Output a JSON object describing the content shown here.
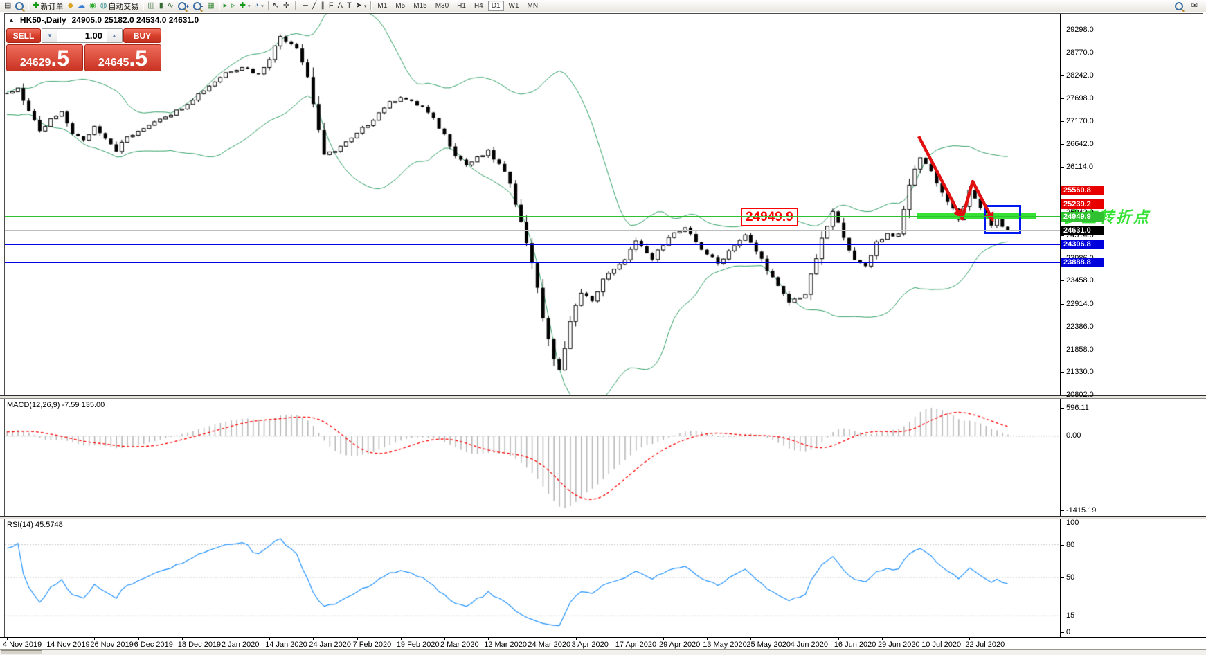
{
  "toolbar": {
    "groups": [
      [
        {
          "name": "charts-window",
          "glyph": "▤"
        },
        {
          "name": "data-preview",
          "glyph": "MAG"
        }
      ],
      [
        {
          "name": "new-order",
          "glyph": "✚",
          "tint": "#1a9a1a",
          "label": "新订单"
        },
        {
          "name": "gold-symbol",
          "glyph": "◆",
          "tint": "#d9a520"
        },
        {
          "name": "community",
          "glyph": "☁",
          "tint": "#3a7bd5"
        },
        {
          "name": "signals",
          "glyph": "◉",
          "tint": "#2faa2f"
        },
        {
          "name": "auto-trading",
          "glyph": "◍",
          "tint": "#2a8a8a",
          "label": "自动交易"
        }
      ],
      [
        {
          "name": "bar-chart-mode",
          "glyph": "▥",
          "tint": "#356b35"
        },
        {
          "name": "candlestick-mode",
          "glyph": "▮",
          "tint": "#356b35"
        },
        {
          "name": "line-chart-mode",
          "glyph": "∿",
          "tint": "#356b35"
        },
        {
          "name": "zoom-in",
          "glyph": "MAG+"
        },
        {
          "name": "zoom-out",
          "glyph": "MAG-"
        },
        {
          "name": "tile-windows",
          "glyph": "▦",
          "tint": "#3a8a3a"
        }
      ],
      [
        {
          "name": "shift-chart-end",
          "glyph": "▸",
          "tint": "#2f8f2f"
        },
        {
          "name": "auto-scroll",
          "glyph": "▹",
          "tint": "#2f8f2f"
        },
        {
          "name": "add-indicator",
          "glyph": "✚",
          "tint": "#1a9a1a",
          "dropdown": true
        },
        {
          "name": "period-presets",
          "glyph": "◔",
          "tint": "#3a6ea5",
          "dropdown": true
        }
      ],
      [
        {
          "name": "cursor-tool",
          "glyph": "↖"
        },
        {
          "name": "crosshair-tool",
          "glyph": "✛"
        },
        {
          "name": "vertical-line-tool",
          "glyph": "│"
        },
        {
          "name": "horizontal-line-tool",
          "glyph": "─"
        },
        {
          "name": "trendline-tool",
          "glyph": "╱"
        },
        {
          "name": "equidistant-channel-tool",
          "glyph": "∥"
        },
        {
          "name": "fibonacci-tool",
          "glyph": "F"
        },
        {
          "name": "text-tool",
          "glyph": "A"
        },
        {
          "name": "text-label-tool",
          "glyph": "T"
        },
        {
          "name": "arrows-tool",
          "glyph": "➤",
          "dropdown": true
        }
      ]
    ],
    "timeframes": [
      {
        "label": "M1"
      },
      {
        "label": "M5"
      },
      {
        "label": "M15"
      },
      {
        "label": "M30"
      },
      {
        "label": "H1"
      },
      {
        "label": "H4"
      },
      {
        "label": "D1",
        "active": true
      },
      {
        "label": "W1"
      },
      {
        "label": "MN"
      }
    ],
    "right_icons": [
      {
        "name": "search",
        "glyph": "MAG"
      },
      {
        "name": "chat",
        "glyph": "✉"
      }
    ]
  },
  "chart": {
    "header": {
      "collapse_glyph": "▲",
      "title": "HK50-,Daily",
      "ohlc": "24905.0 25182.0 24534.0 24631.0"
    },
    "one_click": {
      "sell_label": "SELL",
      "buy_label": "BUY",
      "volume": "1.00",
      "spin_down": "▼",
      "spin_up": "▲",
      "sell_price_main": "24629",
      "sell_price_frac": ".5",
      "buy_price_main": "24645",
      "buy_price_frac": ".5"
    },
    "y_axis_ticks": [
      "29298.0",
      "28770.0",
      "28242.0",
      "27698.0",
      "27170.0",
      "26642.0",
      "26114.0",
      "25042.0",
      "24514.0",
      "23986.0",
      "23458.0",
      "22914.0",
      "22386.0",
      "21858.0",
      "21330.0",
      "20802.0"
    ],
    "price_tags": [
      {
        "text": "25560.8",
        "bg": "#e80000"
      },
      {
        "text": "25239.2",
        "bg": "#e80000"
      },
      {
        "text": "24949.9",
        "bg": "#2fc12f"
      },
      {
        "text": "24631.0",
        "bg": "#000000"
      },
      {
        "text": "24306.8",
        "bg": "#0000dd"
      },
      {
        "text": "23888.8",
        "bg": "#0000dd"
      }
    ],
    "hlines": [
      {
        "price": 25560.8,
        "color": "#ff0000",
        "width": 1
      },
      {
        "price": 25239.2,
        "color": "#ff0000",
        "width": 1
      },
      {
        "price": 24949.9,
        "color": "#2fc12f",
        "width": 1
      },
      {
        "price": 24631.0,
        "color": "#bdbdbd",
        "width": 1
      },
      {
        "price": 24306.8,
        "color": "#0000e6",
        "width": 2
      },
      {
        "price": 23888.8,
        "color": "#0000e6",
        "width": 2
      }
    ],
    "annotations": {
      "price_callout": "24949.9",
      "cjk_note": "多空转折点",
      "accent_green": "#35e235",
      "arrow_red": "#e01010",
      "box_blue": "#0018f0"
    },
    "x_axis_dates": [
      "4 Nov 2019",
      "14 Nov 2019",
      "26 Nov 2019",
      "6 Dec 2019",
      "18 Dec 2019",
      "2 Jan 2020",
      "14 Jan 2020",
      "24 Jan 2020",
      "7 Feb 2020",
      "19 Feb 2020",
      "2 Mar 2020",
      "12 Mar 2020",
      "24 Mar 2020",
      "3 Apr 2020",
      "17 Apr 2020",
      "29 Apr 2020",
      "13 May 2020",
      "25 May 2020",
      "4 Jun 2020",
      "16 Jun 2020",
      "29 Jun 2020",
      "10 Jul 2020",
      "22 Jul 2020"
    ]
  },
  "macd": {
    "label": "MACD(12,26,9) -7.59 135.00",
    "axis_labels": [
      "596.11",
      "0.00",
      "-1415.19"
    ]
  },
  "rsi": {
    "label": "RSI(14) 45.5748",
    "axis_labels": [
      {
        "text": "100",
        "value": 100
      },
      {
        "text": "80",
        "value": 80
      },
      {
        "text": "50",
        "value": 50
      },
      {
        "text": "15",
        "value": 15
      },
      {
        "text": "0",
        "value": 0
      }
    ],
    "levels": [
      80,
      50,
      15
    ]
  },
  "chart_data": {
    "type": "candlestick",
    "symbol": "HK50",
    "period": "Daily",
    "last_ohlc": {
      "open": 24905.0,
      "high": 25182.0,
      "low": 24534.0,
      "close": 24631.0
    },
    "bid": 24629.5,
    "ask": 24645.5,
    "current_price": 24631.0,
    "levels": [
      25560.8,
      25239.2,
      24949.9,
      24306.8,
      23888.8
    ],
    "indicators": [
      {
        "name": "Bollinger Bands",
        "period": 20,
        "deviation": 2,
        "color": "#2e9e63"
      },
      {
        "name": "MACD",
        "fast": 12,
        "slow": 26,
        "signal": 9,
        "main": -7.59,
        "signal_value": 135.0,
        "scale_max": 596.11,
        "scale_min": -1415.19
      },
      {
        "name": "RSI",
        "period": 14,
        "value": 45.5748,
        "scale": [
          0,
          100
        ]
      }
    ],
    "y_range_visible": [
      20802.0,
      29298.0
    ],
    "candles_count": 184,
    "close_anchors": [
      [
        -25,
        27300
      ],
      [
        -20,
        27550
      ],
      [
        -15,
        27350
      ],
      [
        -10,
        27600
      ],
      [
        -5,
        27680
      ],
      [
        0,
        27800
      ],
      [
        2,
        27950
      ],
      [
        4,
        27400
      ],
      [
        6,
        26900
      ],
      [
        8,
        27200
      ],
      [
        10,
        27350
      ],
      [
        12,
        26900
      ],
      [
        14,
        26700
      ],
      [
        16,
        27050
      ],
      [
        18,
        26800
      ],
      [
        20,
        26500
      ],
      [
        22,
        26800
      ],
      [
        24,
        26900
      ],
      [
        26,
        27100
      ],
      [
        28,
        27250
      ],
      [
        31,
        27400
      ],
      [
        34,
        27700
      ],
      [
        37,
        28000
      ],
      [
        40,
        28300
      ],
      [
        43,
        28450
      ],
      [
        46,
        28250
      ],
      [
        48,
        28650
      ],
      [
        50,
        29150
      ],
      [
        53,
        28900
      ],
      [
        55,
        28200
      ],
      [
        58,
        26350
      ],
      [
        60,
        26500
      ],
      [
        63,
        26750
      ],
      [
        66,
        27100
      ],
      [
        69,
        27500
      ],
      [
        72,
        27750
      ],
      [
        74,
        27600
      ],
      [
        76,
        27500
      ],
      [
        78,
        27200
      ],
      [
        80,
        26850
      ],
      [
        82,
        26400
      ],
      [
        84,
        26150
      ],
      [
        86,
        26300
      ],
      [
        88,
        26450
      ],
      [
        90,
        26150
      ],
      [
        92,
        25750
      ],
      [
        94,
        24800
      ],
      [
        96,
        23900
      ],
      [
        98,
        22600
      ],
      [
        100,
        21600
      ],
      [
        101,
        21350
      ],
      [
        103,
        22500
      ],
      [
        105,
        23200
      ],
      [
        107,
        22950
      ],
      [
        109,
        23500
      ],
      [
        112,
        23800
      ],
      [
        115,
        24350
      ],
      [
        118,
        23950
      ],
      [
        121,
        24500
      ],
      [
        124,
        24650
      ],
      [
        127,
        24200
      ],
      [
        130,
        23850
      ],
      [
        133,
        24300
      ],
      [
        135,
        24500
      ],
      [
        138,
        23950
      ],
      [
        141,
        23300
      ],
      [
        143,
        22950
      ],
      [
        146,
        23150
      ],
      [
        149,
        24400
      ],
      [
        151,
        25050
      ],
      [
        153,
        24500
      ],
      [
        155,
        23900
      ],
      [
        157,
        23800
      ],
      [
        159,
        24350
      ],
      [
        161,
        24550
      ],
      [
        163,
        24500
      ],
      [
        165,
        25700
      ],
      [
        167,
        26350
      ],
      [
        169,
        26000
      ],
      [
        171,
        25500
      ],
      [
        173,
        25100
      ],
      [
        174,
        24860
      ],
      [
        176,
        25550
      ],
      [
        178,
        25150
      ],
      [
        180,
        24750
      ],
      [
        181,
        24900
      ],
      [
        182,
        24700
      ],
      [
        183,
        24631
      ]
    ]
  }
}
